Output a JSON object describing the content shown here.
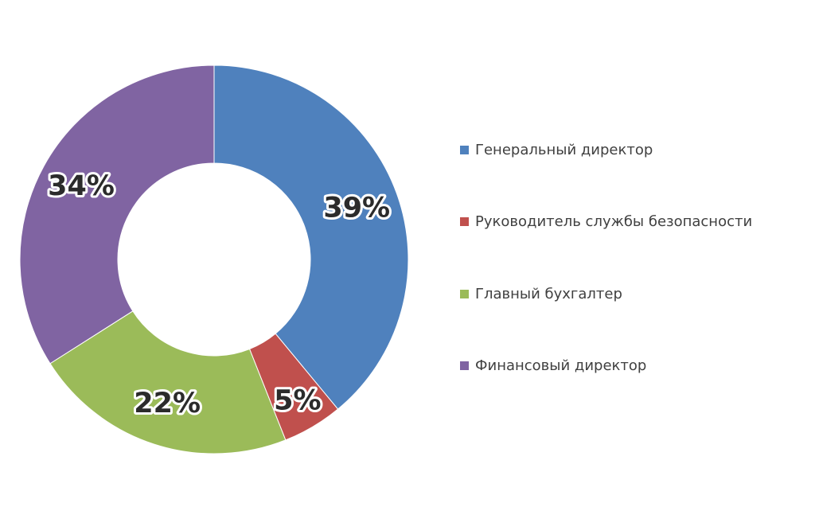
{
  "chart_data": {
    "type": "pie",
    "donut": true,
    "title": "",
    "categories": [
      "Генеральный директор",
      "Руководитель службы безопасности",
      "Главный бухгалтер",
      "Финансовый директор"
    ],
    "values": [
      39,
      5,
      22,
      34
    ],
    "value_labels": [
      "39%",
      "5%",
      "22%",
      "34%"
    ],
    "colors": [
      "#4f81bd",
      "#c0504d",
      "#9bbb59",
      "#8064a2"
    ],
    "start_angle": "12 o'clock",
    "direction": "clockwise",
    "legend_position": "right"
  }
}
